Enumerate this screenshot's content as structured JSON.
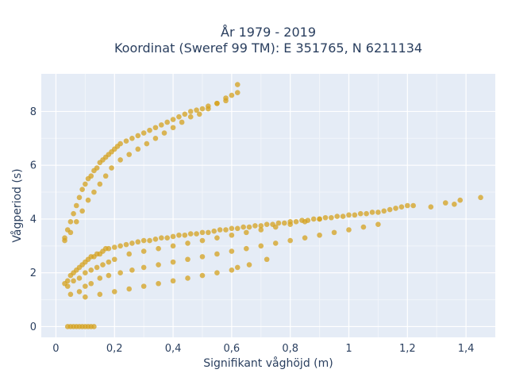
{
  "chart_data": {
    "type": "scatter",
    "title": "År 1979 - 2019",
    "subtitle": "Koordinat (Sweref 99 TM): E 351765, N 6211134",
    "xlabel": "Signifikant våghöjd (m)",
    "ylabel": "Vågperiod (s)",
    "xlim": [
      -0.05,
      1.5
    ],
    "ylim": [
      -0.4,
      9.4
    ],
    "xticks": [
      0,
      0.2,
      0.4,
      0.6,
      0.8,
      1,
      1.2,
      1.4
    ],
    "xtick_labels": [
      "0",
      "0,2",
      "0,4",
      "0,6",
      "0,8",
      "1",
      "1,2",
      "1,4"
    ],
    "yticks": [
      0,
      2,
      4,
      6,
      8
    ],
    "ytick_labels": [
      "0",
      "2",
      "4",
      "6",
      "8"
    ],
    "grid": true,
    "legend": "none",
    "marker_color": "#D4A21D",
    "series": [
      {
        "x": [
          0.04,
          0.05,
          0.06,
          0.07,
          0.08,
          0.09,
          0.1,
          0.11,
          0.12,
          0.13,
          0.03,
          0.04,
          0.05,
          0.06,
          0.07,
          0.08,
          0.09,
          0.1,
          0.11,
          0.12,
          0.13,
          0.14,
          0.15,
          0.16,
          0.17,
          0.18,
          0.2,
          0.22,
          0.24,
          0.26,
          0.28,
          0.3,
          0.32,
          0.34,
          0.36,
          0.38,
          0.4,
          0.42,
          0.44,
          0.46,
          0.48,
          0.5,
          0.52,
          0.54,
          0.56,
          0.58,
          0.6,
          0.62,
          0.64,
          0.66,
          0.68,
          0.7,
          0.72,
          0.74,
          0.76,
          0.78,
          0.8,
          0.82,
          0.84,
          0.86,
          0.88,
          0.9,
          0.92,
          0.94,
          0.96,
          0.98,
          1.0,
          1.02,
          1.04,
          1.06,
          1.08,
          1.1,
          1.12,
          1.14,
          1.16,
          1.18,
          1.2,
          1.22,
          1.28,
          1.33,
          1.36,
          1.38,
          1.45,
          0.05,
          0.08,
          0.1,
          0.12,
          0.15,
          0.18,
          0.22,
          0.26,
          0.3,
          0.35,
          0.4,
          0.45,
          0.5,
          0.55,
          0.6,
          0.65,
          0.7,
          0.75,
          0.8,
          0.85,
          0.9,
          0.95,
          1.0,
          1.05,
          1.1,
          0.1,
          0.15,
          0.2,
          0.25,
          0.3,
          0.35,
          0.4,
          0.45,
          0.5,
          0.55,
          0.6,
          0.62,
          0.66,
          0.72,
          0.03,
          0.04,
          0.05,
          0.06,
          0.07,
          0.08,
          0.09,
          0.1,
          0.11,
          0.12,
          0.13,
          0.14,
          0.15,
          0.16,
          0.17,
          0.18,
          0.19,
          0.2,
          0.21,
          0.22,
          0.24,
          0.26,
          0.28,
          0.3,
          0.32,
          0.34,
          0.36,
          0.38,
          0.4,
          0.42,
          0.44,
          0.46,
          0.48,
          0.5,
          0.52,
          0.55,
          0.58,
          0.6,
          0.62,
          0.03,
          0.05,
          0.07,
          0.09,
          0.11,
          0.13,
          0.15,
          0.17,
          0.19,
          0.22,
          0.25,
          0.28,
          0.31,
          0.34,
          0.37,
          0.4,
          0.43,
          0.46,
          0.49,
          0.52,
          0.55,
          0.58,
          0.62,
          0.04,
          0.06,
          0.08,
          0.1,
          0.12,
          0.14,
          0.16,
          0.18,
          0.2,
          0.25,
          0.3,
          0.35,
          0.4,
          0.45,
          0.5,
          0.55,
          0.6,
          0.65,
          0.7,
          0.75,
          0.8,
          0.85,
          0.9
        ],
        "y": [
          0,
          0,
          0,
          0,
          0,
          0,
          0,
          0,
          0,
          0,
          1.6,
          1.7,
          1.9,
          2.0,
          2.1,
          2.2,
          2.3,
          2.4,
          2.5,
          2.6,
          2.6,
          2.7,
          2.7,
          2.8,
          2.9,
          2.9,
          2.95,
          3.0,
          3.05,
          3.1,
          3.15,
          3.2,
          3.2,
          3.25,
          3.3,
          3.3,
          3.35,
          3.4,
          3.4,
          3.45,
          3.45,
          3.5,
          3.5,
          3.55,
          3.6,
          3.6,
          3.65,
          3.65,
          3.7,
          3.7,
          3.75,
          3.75,
          3.8,
          3.8,
          3.85,
          3.85,
          3.9,
          3.9,
          3.95,
          3.95,
          4.0,
          4.0,
          4.05,
          4.05,
          4.1,
          4.1,
          4.15,
          4.15,
          4.2,
          4.2,
          4.25,
          4.25,
          4.3,
          4.35,
          4.4,
          4.45,
          4.5,
          4.5,
          4.45,
          4.6,
          4.55,
          4.7,
          4.8,
          1.2,
          1.3,
          1.5,
          1.6,
          1.8,
          1.9,
          2.0,
          2.1,
          2.2,
          2.3,
          2.4,
          2.5,
          2.6,
          2.7,
          2.8,
          2.9,
          3.0,
          3.1,
          3.2,
          3.3,
          3.4,
          3.5,
          3.6,
          3.7,
          3.8,
          1.1,
          1.2,
          1.3,
          1.4,
          1.5,
          1.6,
          1.7,
          1.8,
          1.9,
          2.0,
          2.1,
          2.2,
          2.3,
          2.5,
          3.3,
          3.6,
          3.9,
          4.2,
          4.5,
          4.8,
          5.1,
          5.3,
          5.5,
          5.6,
          5.8,
          5.9,
          6.1,
          6.2,
          6.3,
          6.4,
          6.5,
          6.6,
          6.7,
          6.8,
          6.9,
          7.0,
          7.1,
          7.2,
          7.3,
          7.4,
          7.5,
          7.6,
          7.7,
          7.8,
          7.9,
          8.0,
          8.05,
          8.1,
          8.2,
          8.3,
          8.4,
          8.6,
          8.7,
          3.2,
          3.5,
          3.9,
          4.3,
          4.7,
          5.0,
          5.3,
          5.6,
          5.9,
          6.2,
          6.4,
          6.6,
          6.8,
          7.0,
          7.2,
          7.4,
          7.6,
          7.8,
          7.9,
          8.1,
          8.3,
          8.5,
          9.0,
          1.5,
          1.7,
          1.8,
          2.0,
          2.1,
          2.2,
          2.3,
          2.4,
          2.5,
          2.7,
          2.8,
          2.9,
          3.0,
          3.1,
          3.2,
          3.3,
          3.4,
          3.5,
          3.6,
          3.7,
          3.8,
          3.9,
          4.0
        ]
      }
    ]
  }
}
